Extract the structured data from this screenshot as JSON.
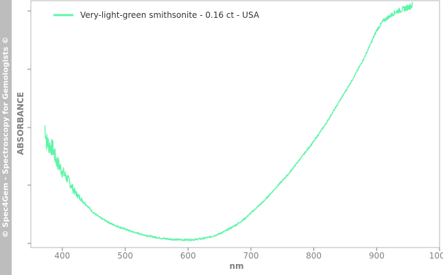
{
  "watermark": "© Spec4Gem - Spectroscopy for Gemologists ©",
  "chart_data": {
    "type": "line",
    "xlabel": "nm",
    "ylabel": "ABSORBANCE",
    "xlim": [
      350,
      1000
    ],
    "xticks": [
      400,
      500,
      600,
      700,
      800,
      900,
      1000
    ],
    "ylim": [
      0,
      1
    ],
    "grid": false,
    "legend_position": "top-left",
    "series": [
      {
        "name": "Very-light-green smithsonite - 0.16 ct - USA",
        "color": "#5ef5a8",
        "x": [
          372,
          375,
          380,
          385,
          390,
          400,
          410,
          420,
          430,
          440,
          450,
          460,
          470,
          480,
          490,
          500,
          510,
          520,
          530,
          540,
          550,
          560,
          570,
          580,
          590,
          600,
          610,
          620,
          630,
          640,
          650,
          660,
          670,
          680,
          690,
          700,
          720,
          740,
          760,
          780,
          800,
          820,
          840,
          860,
          870,
          880,
          890,
          900,
          910,
          920,
          930,
          940,
          950,
          957
        ],
        "y": [
          0.5,
          0.43,
          0.41,
          0.4,
          0.35,
          0.3,
          0.26,
          0.21,
          0.18,
          0.15,
          0.12,
          0.1,
          0.085,
          0.07,
          0.06,
          0.05,
          0.04,
          0.032,
          0.025,
          0.019,
          0.014,
          0.01,
          0.007,
          0.005,
          0.004,
          0.004,
          0.005,
          0.008,
          0.013,
          0.02,
          0.03,
          0.043,
          0.058,
          0.075,
          0.095,
          0.12,
          0.17,
          0.23,
          0.29,
          0.36,
          0.43,
          0.51,
          0.6,
          0.69,
          0.74,
          0.79,
          0.85,
          0.91,
          0.95,
          0.97,
          0.99,
          1.0,
          1.01,
          1.02
        ]
      }
    ]
  }
}
